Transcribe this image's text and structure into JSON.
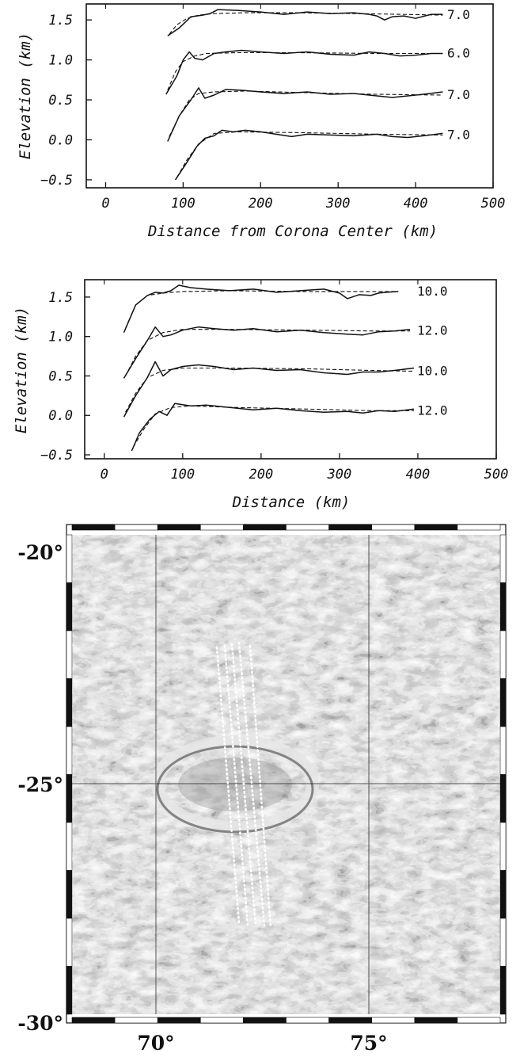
{
  "chart_data": [
    {
      "type": "line",
      "xlabel": "Distance from Corona Center (km)",
      "ylabel": "Elevation (km)",
      "xlim": [
        -25,
        500
      ],
      "ylim": [
        -0.6,
        1.7
      ],
      "xticks": [
        "0",
        "100",
        "200",
        "300",
        "400",
        "500"
      ],
      "yticks": [
        "1.5",
        "1.0",
        "0.5",
        "0.0",
        "−0.5"
      ],
      "series": [
        {
          "label": "7.0",
          "observed": [
            [
              80,
              1.3
            ],
            [
              95,
              1.4
            ],
            [
              110,
              1.54
            ],
            [
              125,
              1.56
            ],
            [
              135,
              1.58
            ],
            [
              145,
              1.63
            ],
            [
              170,
              1.62
            ],
            [
              200,
              1.6
            ],
            [
              230,
              1.57
            ],
            [
              260,
              1.6
            ],
            [
              290,
              1.58
            ],
            [
              320,
              1.59
            ],
            [
              340,
              1.57
            ],
            [
              350,
              1.55
            ],
            [
              360,
              1.5
            ],
            [
              370,
              1.54
            ],
            [
              385,
              1.55
            ],
            [
              400,
              1.52
            ],
            [
              420,
              1.57
            ],
            [
              435,
              1.57
            ]
          ],
          "model": [
            [
              82,
              1.32
            ],
            [
              92,
              1.44
            ],
            [
              105,
              1.52
            ],
            [
              120,
              1.56
            ],
            [
              140,
              1.58
            ],
            [
              180,
              1.59
            ],
            [
              250,
              1.59
            ],
            [
              320,
              1.58
            ],
            [
              380,
              1.57
            ],
            [
              435,
              1.56
            ]
          ]
        },
        {
          "label": "6.0",
          "observed": [
            [
              78,
              0.57
            ],
            [
              92,
              0.8
            ],
            [
              100,
              1.0
            ],
            [
              108,
              1.1
            ],
            [
              115,
              1.02
            ],
            [
              125,
              1.0
            ],
            [
              140,
              1.08
            ],
            [
              155,
              1.1
            ],
            [
              175,
              1.12
            ],
            [
              200,
              1.1
            ],
            [
              230,
              1.08
            ],
            [
              260,
              1.1
            ],
            [
              290,
              1.07
            ],
            [
              320,
              1.06
            ],
            [
              340,
              1.1
            ],
            [
              360,
              1.08
            ],
            [
              380,
              1.05
            ],
            [
              400,
              1.06
            ],
            [
              420,
              1.08
            ],
            [
              435,
              1.08
            ]
          ],
          "model": [
            [
              80,
              0.62
            ],
            [
              90,
              0.85
            ],
            [
              100,
              0.98
            ],
            [
              115,
              1.05
            ],
            [
              130,
              1.08
            ],
            [
              170,
              1.09
            ],
            [
              250,
              1.09
            ],
            [
              350,
              1.08
            ],
            [
              435,
              1.08
            ]
          ]
        },
        {
          "label": "7.0",
          "observed": [
            [
              80,
              -0.02
            ],
            [
              95,
              0.3
            ],
            [
              110,
              0.5
            ],
            [
              120,
              0.65
            ],
            [
              128,
              0.52
            ],
            [
              140,
              0.56
            ],
            [
              155,
              0.63
            ],
            [
              175,
              0.62
            ],
            [
              200,
              0.6
            ],
            [
              230,
              0.58
            ],
            [
              260,
              0.6
            ],
            [
              290,
              0.57
            ],
            [
              320,
              0.58
            ],
            [
              350,
              0.55
            ],
            [
              370,
              0.53
            ],
            [
              390,
              0.55
            ],
            [
              410,
              0.57
            ],
            [
              435,
              0.6
            ]
          ],
          "model": [
            [
              82,
              0.04
            ],
            [
              95,
              0.3
            ],
            [
              108,
              0.5
            ],
            [
              120,
              0.58
            ],
            [
              140,
              0.6
            ],
            [
              180,
              0.61
            ],
            [
              260,
              0.59
            ],
            [
              350,
              0.57
            ],
            [
              435,
              0.56
            ]
          ]
        },
        {
          "label": "7.0",
          "observed": [
            [
              90,
              -0.5
            ],
            [
              105,
              -0.28
            ],
            [
              118,
              -0.08
            ],
            [
              128,
              0.02
            ],
            [
              140,
              0.05
            ],
            [
              150,
              0.12
            ],
            [
              165,
              0.1
            ],
            [
              180,
              0.12
            ],
            [
              200,
              0.1
            ],
            [
              220,
              0.07
            ],
            [
              240,
              0.04
            ],
            [
              260,
              0.07
            ],
            [
              290,
              0.06
            ],
            [
              320,
              0.05
            ],
            [
              350,
              0.07
            ],
            [
              370,
              0.04
            ],
            [
              390,
              0.03
            ],
            [
              410,
              0.05
            ],
            [
              435,
              0.08
            ]
          ],
          "model": [
            [
              92,
              -0.47
            ],
            [
              105,
              -0.25
            ],
            [
              120,
              -0.05
            ],
            [
              140,
              0.08
            ],
            [
              170,
              0.1
            ],
            [
              250,
              0.09
            ],
            [
              350,
              0.07
            ],
            [
              435,
              0.06
            ]
          ]
        }
      ]
    },
    {
      "type": "line",
      "xlabel": "Distance (km)",
      "ylabel": "Elevation (km)",
      "xlim": [
        -25,
        500
      ],
      "ylim": [
        -0.55,
        1.72
      ],
      "xticks": [
        "0",
        "100",
        "200",
        "300",
        "400",
        "500"
      ],
      "yticks": [
        "1.5",
        "1.0",
        "0.5",
        "0.0",
        "−0.5"
      ],
      "series": [
        {
          "label": "10.0",
          "observed": [
            [
              25,
              1.05
            ],
            [
              40,
              1.4
            ],
            [
              55,
              1.52
            ],
            [
              65,
              1.56
            ],
            [
              75,
              1.55
            ],
            [
              85,
              1.58
            ],
            [
              95,
              1.65
            ],
            [
              110,
              1.62
            ],
            [
              130,
              1.6
            ],
            [
              160,
              1.58
            ],
            [
              190,
              1.6
            ],
            [
              220,
              1.56
            ],
            [
              250,
              1.58
            ],
            [
              280,
              1.6
            ],
            [
              300,
              1.55
            ],
            [
              310,
              1.48
            ],
            [
              325,
              1.53
            ],
            [
              340,
              1.52
            ],
            [
              350,
              1.55
            ],
            [
              360,
              1.56
            ],
            [
              375,
              1.57
            ]
          ],
          "model": [
            [
              27,
              1.1
            ],
            [
              40,
              1.4
            ],
            [
              55,
              1.52
            ],
            [
              75,
              1.55
            ],
            [
              100,
              1.57
            ],
            [
              160,
              1.58
            ],
            [
              250,
              1.57
            ],
            [
              320,
              1.57
            ],
            [
              375,
              1.57
            ]
          ]
        },
        {
          "label": "12.0",
          "observed": [
            [
              25,
              0.47
            ],
            [
              40,
              0.72
            ],
            [
              55,
              0.95
            ],
            [
              65,
              1.12
            ],
            [
              75,
              1.0
            ],
            [
              85,
              1.02
            ],
            [
              100,
              1.08
            ],
            [
              120,
              1.12
            ],
            [
              140,
              1.1
            ],
            [
              165,
              1.08
            ],
            [
              190,
              1.1
            ],
            [
              220,
              1.06
            ],
            [
              250,
              1.08
            ],
            [
              280,
              1.05
            ],
            [
              310,
              1.03
            ],
            [
              330,
              1.02
            ],
            [
              350,
              1.06
            ],
            [
              370,
              1.07
            ],
            [
              390,
              1.09
            ]
          ],
          "model": [
            [
              27,
              0.5
            ],
            [
              40,
              0.75
            ],
            [
              55,
              0.95
            ],
            [
              75,
              1.05
            ],
            [
              100,
              1.09
            ],
            [
              160,
              1.09
            ],
            [
              260,
              1.08
            ],
            [
              340,
              1.07
            ],
            [
              390,
              1.07
            ]
          ]
        },
        {
          "label": "10.0",
          "observed": [
            [
              25,
              -0.02
            ],
            [
              40,
              0.25
            ],
            [
              55,
              0.48
            ],
            [
              65,
              0.68
            ],
            [
              75,
              0.5
            ],
            [
              85,
              0.58
            ],
            [
              100,
              0.62
            ],
            [
              120,
              0.64
            ],
            [
              140,
              0.62
            ],
            [
              165,
              0.58
            ],
            [
              190,
              0.6
            ],
            [
              220,
              0.57
            ],
            [
              250,
              0.58
            ],
            [
              280,
              0.54
            ],
            [
              310,
              0.52
            ],
            [
              330,
              0.55
            ],
            [
              350,
              0.55
            ],
            [
              370,
              0.57
            ],
            [
              395,
              0.6
            ]
          ],
          "model": [
            [
              27,
              0.04
            ],
            [
              40,
              0.28
            ],
            [
              55,
              0.48
            ],
            [
              75,
              0.57
            ],
            [
              100,
              0.6
            ],
            [
              160,
              0.6
            ],
            [
              260,
              0.59
            ],
            [
              340,
              0.57
            ],
            [
              395,
              0.56
            ]
          ]
        },
        {
          "label": "12.0",
          "observed": [
            [
              35,
              -0.45
            ],
            [
              45,
              -0.22
            ],
            [
              58,
              -0.05
            ],
            [
              70,
              0.05
            ],
            [
              80,
              0.0
            ],
            [
              90,
              0.15
            ],
            [
              110,
              0.12
            ],
            [
              130,
              0.13
            ],
            [
              160,
              0.1
            ],
            [
              190,
              0.07
            ],
            [
              220,
              0.09
            ],
            [
              250,
              0.06
            ],
            [
              280,
              0.04
            ],
            [
              310,
              0.05
            ],
            [
              330,
              0.03
            ],
            [
              350,
              0.06
            ],
            [
              370,
              0.05
            ],
            [
              395,
              0.08
            ]
          ],
          "model": [
            [
              37,
              -0.4
            ],
            [
              50,
              -0.18
            ],
            [
              65,
              0.02
            ],
            [
              85,
              0.1
            ],
            [
              110,
              0.12
            ],
            [
              170,
              0.1
            ],
            [
              260,
              0.08
            ],
            [
              340,
              0.06
            ],
            [
              395,
              0.06
            ]
          ]
        }
      ]
    },
    {
      "type": "heatmap",
      "yticks": [
        "-20°",
        "-25°",
        "-30°"
      ],
      "xticks": [
        "70°",
        "75°"
      ],
      "lon_range": [
        68,
        78
      ],
      "lat_range": [
        -20,
        -30
      ]
    }
  ]
}
